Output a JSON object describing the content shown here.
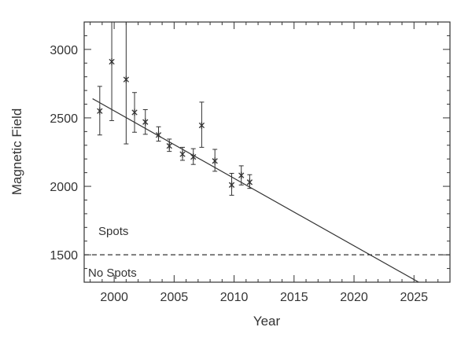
{
  "chart_data": {
    "type": "scatter",
    "title": "",
    "xlabel": "Year",
    "ylabel": "Magnetic Field",
    "xlim": [
      1997.5,
      2028
    ],
    "ylim": [
      1300,
      3200
    ],
    "xticks": [
      2000,
      2005,
      2010,
      2015,
      2020,
      2025
    ],
    "yticks": [
      1500,
      2000,
      2500,
      3000
    ],
    "grid": false,
    "series": [
      {
        "x": [
          1998.8,
          1999.8,
          2001.0,
          2001.7,
          2002.6,
          2003.7,
          2004.6,
          2005.7,
          2006.6,
          2007.3,
          2008.4,
          2009.8,
          2010.6,
          2011.3
        ],
        "y": [
          2550,
          2910,
          2780,
          2540,
          2470,
          2375,
          2295,
          2235,
          2215,
          2445,
          2185,
          2010,
          2080,
          2030
        ],
        "yerr_low": [
          2375,
          2480,
          2310,
          2395,
          2380,
          2330,
          2255,
          2190,
          2160,
          2285,
          2110,
          1935,
          2010,
          1985
        ],
        "yerr_high": [
          2730,
          3200,
          3200,
          2685,
          2560,
          2435,
          2345,
          2285,
          2275,
          2615,
          2270,
          2095,
          2150,
          2085
        ]
      }
    ],
    "trend_line": {
      "x": [
        1998.2,
        2026.0
      ],
      "y": [
        2640,
        1270
      ]
    },
    "threshold_line": {
      "y": 1500,
      "style": "dashed"
    },
    "annotations": {
      "above": "Spots",
      "below": "No Spots"
    },
    "colors": {
      "ink": "#333333",
      "background": "#ffffff"
    }
  }
}
